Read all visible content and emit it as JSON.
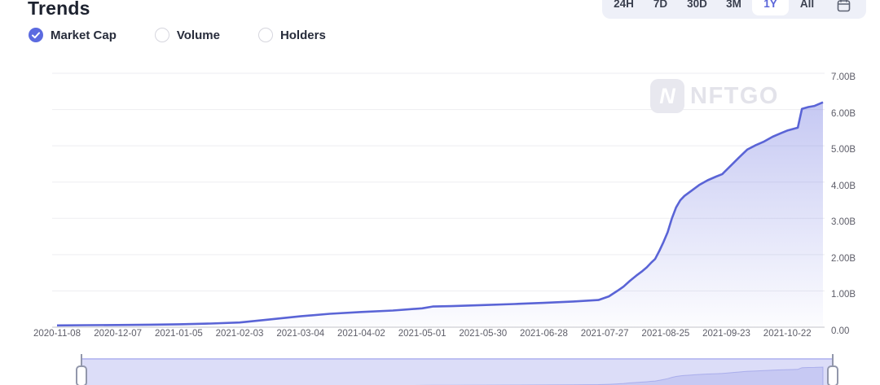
{
  "header": {
    "title": "Trends",
    "range_selector": {
      "options": [
        {
          "label": "24H",
          "selected": false
        },
        {
          "label": "7D",
          "selected": false
        },
        {
          "label": "30D",
          "selected": false
        },
        {
          "label": "3M",
          "selected": false
        },
        {
          "label": "1Y",
          "selected": true
        },
        {
          "label": "All",
          "selected": false
        }
      ],
      "calendar_icon": "calendar-icon"
    }
  },
  "metric_tabs": [
    {
      "label": "Market Cap",
      "selected": true
    },
    {
      "label": "Volume",
      "selected": false
    },
    {
      "label": "Holders",
      "selected": false
    }
  ],
  "watermark": {
    "logo_letter": "N",
    "text": "NFTGO"
  },
  "colors": {
    "accent": "#5b66d9",
    "line": "#5a64d6",
    "area_top": "rgba(101,109,222,0.42)",
    "area_bottom": "rgba(101,109,222,0.02)",
    "grid": "#ededf1",
    "axis": "#d7d7dc",
    "selector_bg": "#eef0f8",
    "scrub_band": "#dcddf8",
    "scrub_mini": "#c7c9f3"
  },
  "chart_data": {
    "type": "area",
    "title": "Market Cap trend (1Y)",
    "series_name": "Market Cap",
    "unit": "B (billions USD)",
    "grid": "horizontal",
    "legend_position": "none",
    "ylim_b": [
      0,
      7
    ],
    "x_range": [
      "2020-11-08",
      "2021-11-08"
    ],
    "y_tick_labels": [
      "0.00",
      "1.00B",
      "2.00B",
      "3.00B",
      "4.00B",
      "5.00B",
      "6.00B",
      "7.00B"
    ],
    "x_tick_labels": [
      "2020-11-08",
      "2020-12-07",
      "2021-01-05",
      "2021-02-03",
      "2021-03-04",
      "2021-04-02",
      "2021-05-01",
      "2021-05-30",
      "2021-06-28",
      "2021-07-27",
      "2021-08-25",
      "2021-09-23",
      "2021-10-22"
    ],
    "points": [
      [
        "2020-11-08",
        0.05
      ],
      [
        "2020-11-22",
        0.055
      ],
      [
        "2020-12-07",
        0.06
      ],
      [
        "2020-12-22",
        0.07
      ],
      [
        "2021-01-05",
        0.08
      ],
      [
        "2021-01-20",
        0.1
      ],
      [
        "2021-02-03",
        0.13
      ],
      [
        "2021-02-17",
        0.21
      ],
      [
        "2021-03-04",
        0.3
      ],
      [
        "2021-03-18",
        0.37
      ],
      [
        "2021-04-02",
        0.42
      ],
      [
        "2021-04-17",
        0.46
      ],
      [
        "2021-05-01",
        0.52
      ],
      [
        "2021-05-06",
        0.57
      ],
      [
        "2021-05-15",
        0.58
      ],
      [
        "2021-05-30",
        0.61
      ],
      [
        "2021-06-14",
        0.64
      ],
      [
        "2021-06-28",
        0.67
      ],
      [
        "2021-07-12",
        0.71
      ],
      [
        "2021-07-24",
        0.75
      ],
      [
        "2021-07-29",
        0.85
      ],
      [
        "2021-08-02",
        1.0
      ],
      [
        "2021-08-05",
        1.12
      ],
      [
        "2021-08-08",
        1.28
      ],
      [
        "2021-08-11",
        1.42
      ],
      [
        "2021-08-14",
        1.55
      ],
      [
        "2021-08-16",
        1.65
      ],
      [
        "2021-08-18",
        1.77
      ],
      [
        "2021-08-20",
        1.88
      ],
      [
        "2021-08-22",
        2.1
      ],
      [
        "2021-08-24",
        2.35
      ],
      [
        "2021-08-26",
        2.62
      ],
      [
        "2021-08-28",
        3.0
      ],
      [
        "2021-08-30",
        3.3
      ],
      [
        "2021-09-01",
        3.5
      ],
      [
        "2021-09-03",
        3.62
      ],
      [
        "2021-09-06",
        3.75
      ],
      [
        "2021-09-10",
        3.92
      ],
      [
        "2021-09-14",
        4.05
      ],
      [
        "2021-09-18",
        4.15
      ],
      [
        "2021-09-21",
        4.22
      ],
      [
        "2021-09-25",
        4.45
      ],
      [
        "2021-09-29",
        4.68
      ],
      [
        "2021-10-03",
        4.9
      ],
      [
        "2021-10-07",
        5.02
      ],
      [
        "2021-10-11",
        5.12
      ],
      [
        "2021-10-15",
        5.25
      ],
      [
        "2021-10-19",
        5.35
      ],
      [
        "2021-10-22",
        5.42
      ],
      [
        "2021-10-27",
        5.5
      ],
      [
        "2021-10-29",
        6.02
      ],
      [
        "2021-11-01",
        6.07
      ],
      [
        "2021-11-04",
        6.1
      ],
      [
        "2021-11-08",
        6.2
      ]
    ]
  },
  "scrubber": {
    "left_handle": "drag-handle",
    "right_handle": "drag-handle"
  }
}
